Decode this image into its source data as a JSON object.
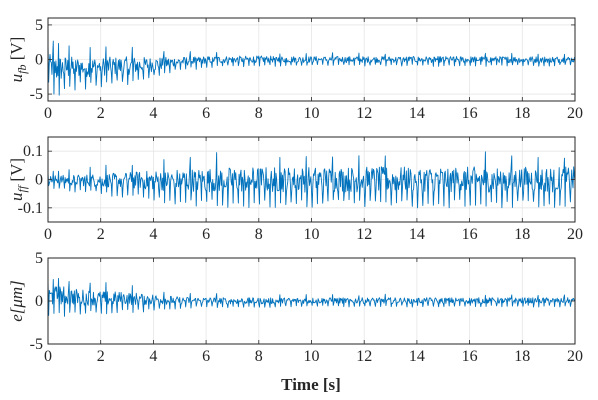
{
  "figure": {
    "xlabel": "Time [s]",
    "line_color": "#0072bd",
    "grid": true
  },
  "chart_data": [
    {
      "type": "line",
      "id": "ufb",
      "title": "",
      "ylabel": {
        "main": "u",
        "sub": "fb",
        "unit": " [V]"
      },
      "xlim": [
        0,
        20
      ],
      "ylim": [
        -6,
        6
      ],
      "xticks": [
        0,
        2,
        4,
        6,
        8,
        10,
        12,
        14,
        16,
        18,
        20
      ],
      "yticks": [
        -5,
        0,
        5
      ],
      "yticklabels": [
        "-5",
        "0",
        "5"
      ],
      "series": [
        {
          "x_range": [
            0,
            20
          ],
          "sample_count": 800,
          "envelope": {
            "t": [
              0,
              0.3,
              1.0,
              2.0,
              3.0,
              4.0,
              5.0,
              6.0,
              8.0,
              10.0,
              20.0
            ],
            "upper": [
              2.6,
              3.0,
              2.3,
              2.0,
              2.0,
              1.6,
              1.2,
              1.1,
              1.1,
              1.0,
              1.0
            ],
            "lower": [
              -4.0,
              -5.7,
              -4.6,
              -4.0,
              -3.8,
              -3.0,
              -1.8,
              -1.2,
              -1.0,
              -1.0,
              -1.0
            ]
          },
          "spike_period_s": 0.2
        }
      ]
    },
    {
      "type": "line",
      "id": "uff",
      "title": "",
      "ylabel": {
        "main": "u",
        "sub": "ff",
        "unit": " [V]"
      },
      "xlim": [
        0,
        20
      ],
      "ylim": [
        -0.15,
        0.15
      ],
      "xticks": [
        0,
        2,
        4,
        6,
        8,
        10,
        12,
        14,
        16,
        18,
        20
      ],
      "yticks": [
        -0.1,
        0,
        0.1
      ],
      "yticklabels": [
        "-0.1",
        "0",
        "0.1"
      ],
      "series": [
        {
          "x_range": [
            0,
            20
          ],
          "sample_count": 800,
          "envelope": {
            "t": [
              0,
              1.0,
              2.0,
              3.0,
              4.0,
              5.0,
              6.0,
              8.0,
              10.0,
              20.0
            ],
            "upper": [
              0.03,
              0.04,
              0.05,
              0.06,
              0.075,
              0.085,
              0.095,
              0.1,
              0.1,
              0.1
            ],
            "lower": [
              -0.03,
              -0.045,
              -0.055,
              -0.065,
              -0.08,
              -0.09,
              -0.1,
              -0.1,
              -0.1,
              -0.1
            ]
          },
          "spike_period_s": 0.2
        }
      ]
    },
    {
      "type": "line",
      "id": "e",
      "title": "",
      "ylabel": {
        "main": "e",
        "sub": "",
        "unit": "[μm]"
      },
      "xlim": [
        0,
        20
      ],
      "ylim": [
        -5,
        5
      ],
      "xticks": [
        0,
        2,
        4,
        6,
        8,
        10,
        12,
        14,
        16,
        18,
        20
      ],
      "yticks": [
        -5,
        0,
        5
      ],
      "yticklabels": [
        "-5",
        "0",
        "5"
      ],
      "series": [
        {
          "x_range": [
            0,
            20
          ],
          "sample_count": 800,
          "envelope": {
            "t": [
              0,
              0.5,
              1.0,
              2.0,
              3.0,
              4.0,
              5.0,
              6.0,
              8.0,
              10.0,
              20.0
            ],
            "upper": [
              3.0,
              3.2,
              2.6,
              2.2,
              2.0,
              1.6,
              1.0,
              0.9,
              0.8,
              0.8,
              0.8
            ],
            "lower": [
              -2.0,
              -1.9,
              -1.6,
              -1.6,
              -1.4,
              -1.2,
              -0.9,
              -0.8,
              -0.8,
              -0.7,
              -0.7
            ]
          },
          "spike_period_s": 0.2
        }
      ]
    }
  ]
}
